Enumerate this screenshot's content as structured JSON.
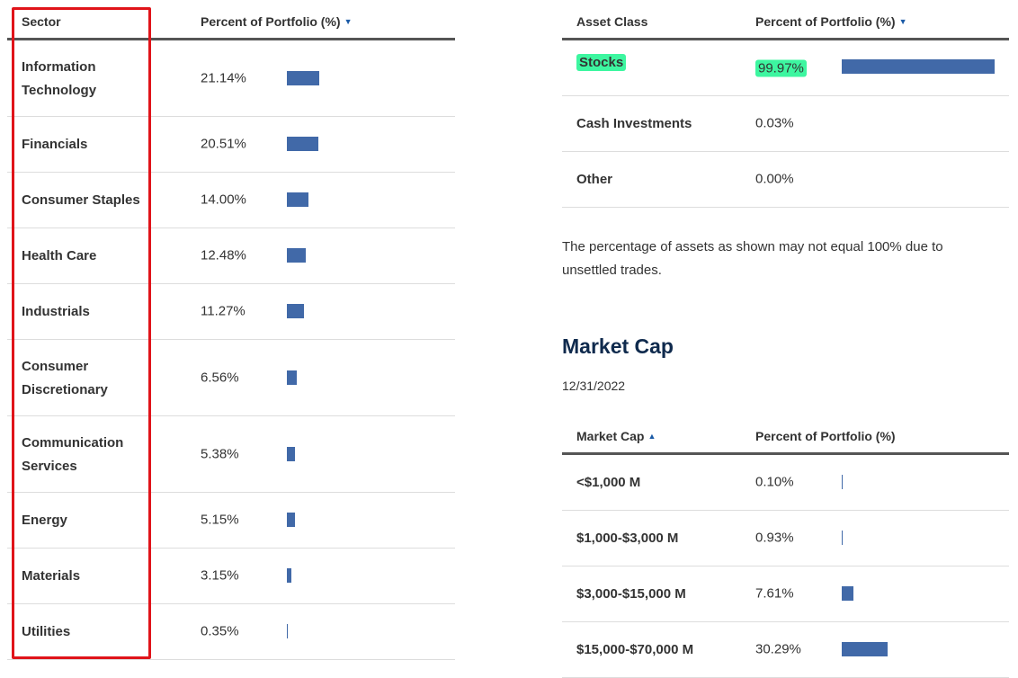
{
  "sector_table": {
    "header_sector": "Sector",
    "header_percent": "Percent of Portfolio (%)",
    "sort_indicator": "▼",
    "rows": [
      {
        "name": "Information\nTechnology",
        "percent": "21.14%",
        "value": 21.14
      },
      {
        "name": "Financials",
        "percent": "20.51%",
        "value": 20.51
      },
      {
        "name": "Consumer Staples",
        "percent": "14.00%",
        "value": 14.0
      },
      {
        "name": "Health Care",
        "percent": "12.48%",
        "value": 12.48
      },
      {
        "name": "Industrials",
        "percent": "11.27%",
        "value": 11.27
      },
      {
        "name": "Consumer\nDiscretionary",
        "percent": "6.56%",
        "value": 6.56
      },
      {
        "name": "Communication\nServices",
        "percent": "5.38%",
        "value": 5.38
      },
      {
        "name": "Energy",
        "percent": "5.15%",
        "value": 5.15
      },
      {
        "name": "Materials",
        "percent": "3.15%",
        "value": 3.15
      },
      {
        "name": "Utilities",
        "percent": "0.35%",
        "value": 0.35
      }
    ]
  },
  "asset_table": {
    "header_asset": "Asset Class",
    "header_percent": "Percent of Portfolio (%)",
    "sort_indicator": "▼",
    "rows": [
      {
        "name": "Stocks",
        "percent": "99.97%",
        "value": 99.97
      },
      {
        "name": "Cash Investments",
        "percent": "0.03%",
        "value": 0.03
      },
      {
        "name": "Other",
        "percent": "0.00%",
        "value": 0.0
      }
    ]
  },
  "note": "The percentage of assets as shown may not equal 100% due to unsettled trades.",
  "market_cap": {
    "title": "Market Cap",
    "date": "12/31/2022",
    "header_cap": "Market Cap",
    "sort_indicator": "▲",
    "header_percent": "Percent of Portfolio (%)",
    "rows": [
      {
        "name": "<$1,000 M",
        "percent": "0.10%",
        "value": 0.1
      },
      {
        "name": "$1,000-$3,000 M",
        "percent": "0.93%",
        "value": 0.93
      },
      {
        "name": "$3,000-$15,000 M",
        "percent": "7.61%",
        "value": 7.61
      },
      {
        "name": "$15,000-$70,000 M",
        "percent": "30.29%",
        "value": 30.29
      }
    ]
  },
  "colors": {
    "bar": "#4169a8",
    "highlight": "#3df6a0",
    "annotation_box": "#e0141a",
    "heading": "#0f2a4d"
  }
}
